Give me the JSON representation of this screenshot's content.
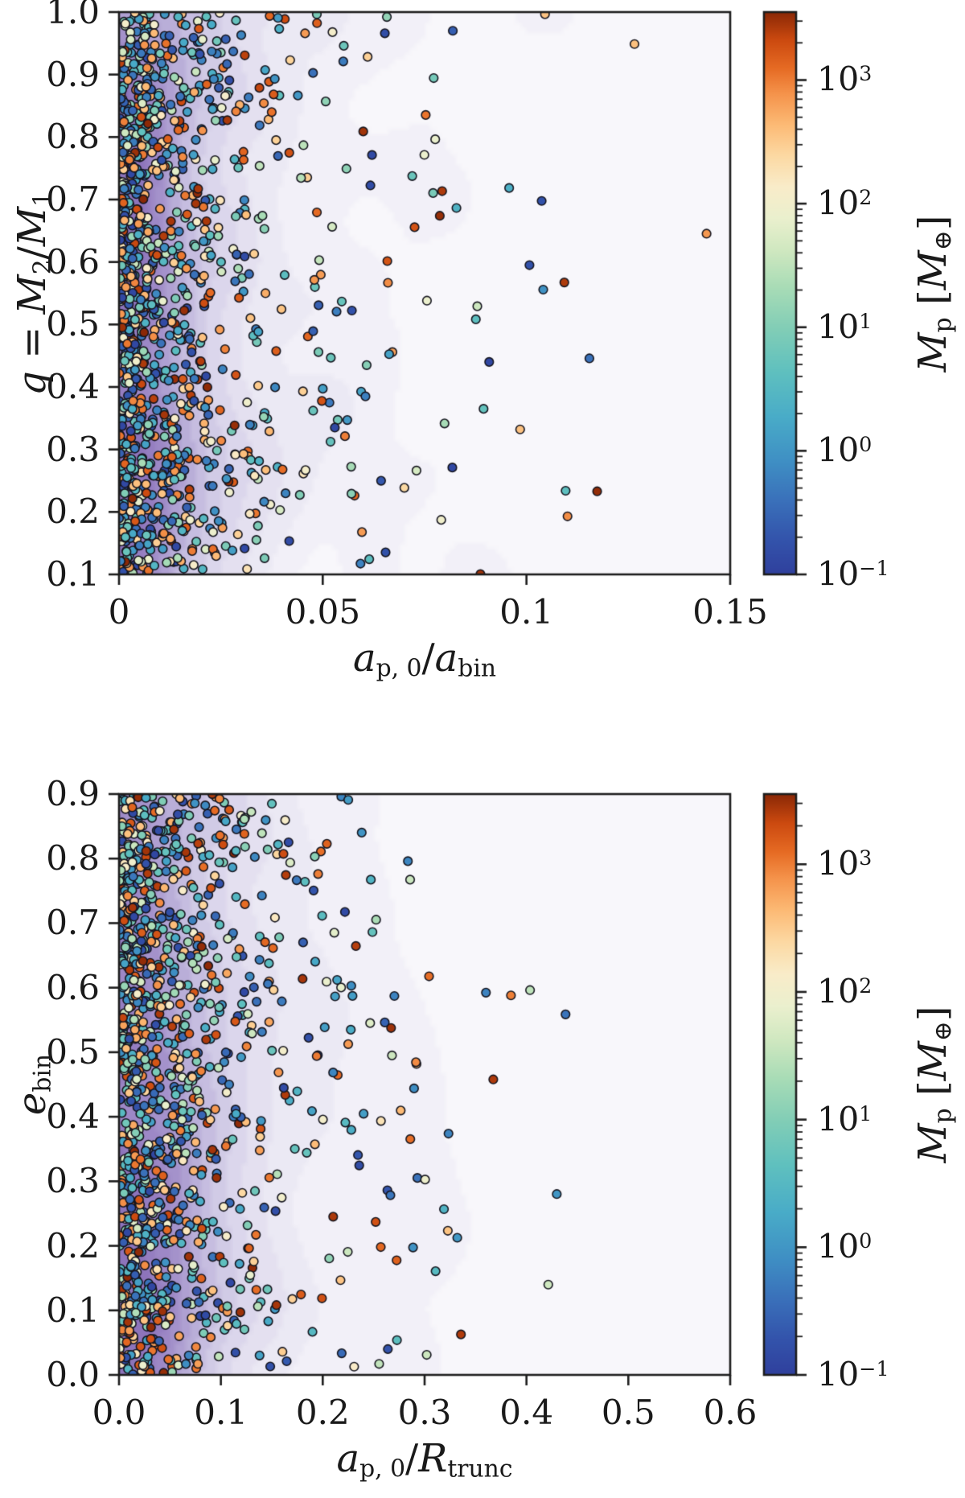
{
  "figure": {
    "description": "Two-panel scatter figure of planet populations in binaries with purple KDE density shading and logarithmic planet-mass colorbars",
    "background": "#ffffff"
  },
  "style": {
    "axis_color": "#1d1d1d",
    "tick_color": "#1d1d1d",
    "text_color": "#1a1a1a",
    "plot_bg": "#f8f8fb",
    "point_edge": "#16161f",
    "point_radius": 5.3,
    "colormap_stops": [
      [
        0.0,
        "#30409d"
      ],
      [
        0.06,
        "#3353ab"
      ],
      [
        0.13,
        "#3a70ba"
      ],
      [
        0.2,
        "#3f8fc4"
      ],
      [
        0.28,
        "#49acc8"
      ],
      [
        0.36,
        "#5fc0bf"
      ],
      [
        0.44,
        "#83ceb6"
      ],
      [
        0.51,
        "#a8dcb6"
      ],
      [
        0.575,
        "#cfe8c0"
      ],
      [
        0.635,
        "#ebf0ce"
      ],
      [
        0.69,
        "#f9ecc9"
      ],
      [
        0.745,
        "#fcd9a3"
      ],
      [
        0.8,
        "#fcba75"
      ],
      [
        0.855,
        "#f5934b"
      ],
      [
        0.9,
        "#e66b24"
      ],
      [
        0.95,
        "#cc4a10"
      ],
      [
        1.0,
        "#8a2806"
      ]
    ],
    "density_stops": [
      [
        0.0,
        "#f8f7fb"
      ],
      [
        0.15,
        "#edebf5"
      ],
      [
        0.3,
        "#dfdbee"
      ],
      [
        0.45,
        "#cdc6e4"
      ],
      [
        0.6,
        "#b7abd7"
      ],
      [
        0.75,
        "#a492cb"
      ],
      [
        0.9,
        "#9780c2"
      ],
      [
        1.0,
        "#8d74bb"
      ]
    ]
  },
  "chart_data": [
    {
      "id": "top-panel",
      "type": "scatter",
      "title": "",
      "xlabel": "a_{p,0}/a_{bin}",
      "ylabel": "q = M_2/M_1",
      "xlabel_parts": [
        [
          "a",
          "i"
        ],
        [
          "p, 0",
          "s"
        ],
        [
          "/",
          "n"
        ],
        [
          "a",
          "i"
        ],
        [
          "bin",
          "s"
        ]
      ],
      "ylabel_parts": [
        [
          "q",
          "i"
        ],
        [
          " = ",
          "n"
        ],
        [
          "M",
          "i"
        ],
        [
          "2",
          "s"
        ],
        [
          "/",
          "n"
        ],
        [
          "M",
          "i"
        ],
        [
          "1",
          "s"
        ]
      ],
      "xlim": [
        0,
        0.15
      ],
      "ylim": [
        0.1,
        1.0
      ],
      "grid": false,
      "xticks": {
        "values": [
          0,
          0.05,
          0.1,
          0.15
        ],
        "labels": [
          "0",
          "0.05",
          "0.1",
          "0.15"
        ]
      },
      "yticks": {
        "values": [
          1.0,
          0.9,
          0.8,
          0.7,
          0.6,
          0.5,
          0.4,
          0.3,
          0.2,
          0.1
        ],
        "labels": [
          "1.0",
          "0.9",
          "0.8",
          "0.7",
          "0.6",
          "0.5",
          "0.4",
          "0.3",
          "0.2",
          "0.1"
        ]
      },
      "points": {
        "n": 1150,
        "seed": 1337,
        "x_distribution": "exponential mixture clustered at small separations, sparse tail to x~0.14",
        "mix_w": 0.68,
        "mean1": 0.011,
        "mean2": 0.03,
        "x_clip": 0.145,
        "y_distribution": "approximately uniform over mass ratio 0.1-1.0",
        "color_by": "planet mass Mp, log scale 0.1 to ~3000 Earth masses"
      },
      "density_overlay": {
        "cmap": "Purples",
        "blur": 5,
        "y_weight": 0.15,
        "description": "KDE contour shading strongest at a_p0/a_bin < 0.03 across all q"
      },
      "colorbar": {
        "label": "M_p [M_Earth]",
        "label_parts": [
          [
            "M",
            "i"
          ],
          [
            "p",
            "s"
          ],
          [
            " [",
            "n"
          ],
          [
            "M",
            "i"
          ],
          [
            "⊕",
            "s"
          ],
          [
            "]",
            "n"
          ]
        ],
        "log_min": -1,
        "log_max": 3.55,
        "tick_exponents": [
          3,
          2,
          1,
          0,
          -1
        ],
        "tick_label_parts": [
          [
            [
              "10",
              "n"
            ],
            [
              "3",
              "p"
            ]
          ],
          [
            [
              "10",
              "n"
            ],
            [
              "2",
              "p"
            ]
          ],
          [
            [
              "10",
              "n"
            ],
            [
              "1",
              "p"
            ]
          ],
          [
            [
              "10",
              "n"
            ],
            [
              "0",
              "p"
            ]
          ],
          [
            [
              "10",
              "n"
            ],
            [
              "−1",
              "p"
            ]
          ]
        ]
      }
    },
    {
      "id": "bottom-panel",
      "type": "scatter",
      "title": "",
      "xlabel": "a_{p,0}/R_{trunc}",
      "ylabel": "e_{bin}",
      "xlabel_parts": [
        [
          "a",
          "i"
        ],
        [
          "p, 0",
          "s"
        ],
        [
          "/",
          "n"
        ],
        [
          "R",
          "i"
        ],
        [
          "trunc",
          "s"
        ]
      ],
      "ylabel_parts": [
        [
          "e",
          "i"
        ],
        [
          "bin",
          "s"
        ]
      ],
      "xlim": [
        0,
        0.6
      ],
      "ylim": [
        0.0,
        0.9
      ],
      "grid": false,
      "xticks": {
        "values": [
          0,
          0.1,
          0.2,
          0.3,
          0.4,
          0.5,
          0.6
        ],
        "labels": [
          "0.0",
          "0.1",
          "0.2",
          "0.3",
          "0.4",
          "0.5",
          "0.6"
        ]
      },
      "yticks": {
        "values": [
          0.9,
          0.8,
          0.7,
          0.6,
          0.5,
          0.4,
          0.3,
          0.2,
          0.1,
          0.0
        ],
        "labels": [
          "0.9",
          "0.8",
          "0.7",
          "0.6",
          "0.5",
          "0.4",
          "0.3",
          "0.2",
          "0.1",
          "0.0"
        ]
      },
      "points": {
        "n": 1150,
        "seed": 4242,
        "x_distribution": "exponential mixture clustered below 0.15, sparse tail to x~0.45",
        "mix_w": 0.6,
        "mean1": 0.045,
        "mean2": 0.105,
        "x_clip": 0.46,
        "y_distribution": "approximately uniform over binary eccentricity 0-0.9",
        "color_by": "planet mass Mp, log scale 0.1 to ~3000 Earth masses"
      },
      "density_overlay": {
        "cmap": "Purples",
        "blur": 6,
        "y_weight": 0.9,
        "description": "KDE contour shading strongest at low a_p0/R_trunc and low e_bin"
      },
      "colorbar": {
        "label": "M_p [M_Earth]",
        "label_parts": [
          [
            "M",
            "i"
          ],
          [
            "p",
            "s"
          ],
          [
            " [",
            "n"
          ],
          [
            "M",
            "i"
          ],
          [
            "⊕",
            "s"
          ],
          [
            "]",
            "n"
          ]
        ],
        "log_min": -1,
        "log_max": 3.55,
        "tick_exponents": [
          3,
          2,
          1,
          0,
          -1
        ],
        "tick_label_parts": [
          [
            [
              "10",
              "n"
            ],
            [
              "3",
              "p"
            ]
          ],
          [
            [
              "10",
              "n"
            ],
            [
              "2",
              "p"
            ]
          ],
          [
            [
              "10",
              "n"
            ],
            [
              "1",
              "p"
            ]
          ],
          [
            [
              "10",
              "n"
            ],
            [
              "0",
              "p"
            ]
          ],
          [
            [
              "10",
              "n"
            ],
            [
              "−1",
              "p"
            ]
          ]
        ]
      }
    }
  ]
}
